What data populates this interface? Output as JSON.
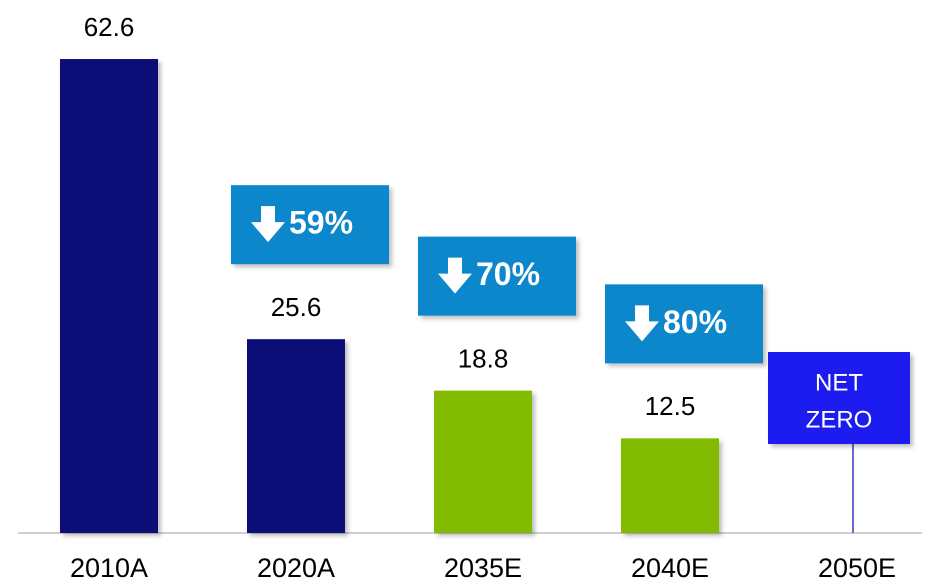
{
  "chart_data": {
    "type": "bar",
    "categories": [
      "2010A",
      "2020A",
      "2035E",
      "2040E",
      "2050E"
    ],
    "values": [
      62.6,
      25.6,
      18.8,
      12.5,
      null
    ],
    "colors": [
      "#0a1178",
      "#0a1178",
      "#82bb00",
      "#82bb00",
      null
    ],
    "ylim": [
      0,
      70
    ],
    "callouts": [
      {
        "category": "2020A",
        "text": "59%"
      },
      {
        "category": "2035E",
        "text": "70%"
      },
      {
        "category": "2040E",
        "text": "80%"
      }
    ],
    "target": {
      "category": "2050E",
      "lines": [
        "NET",
        "ZERO"
      ]
    }
  }
}
